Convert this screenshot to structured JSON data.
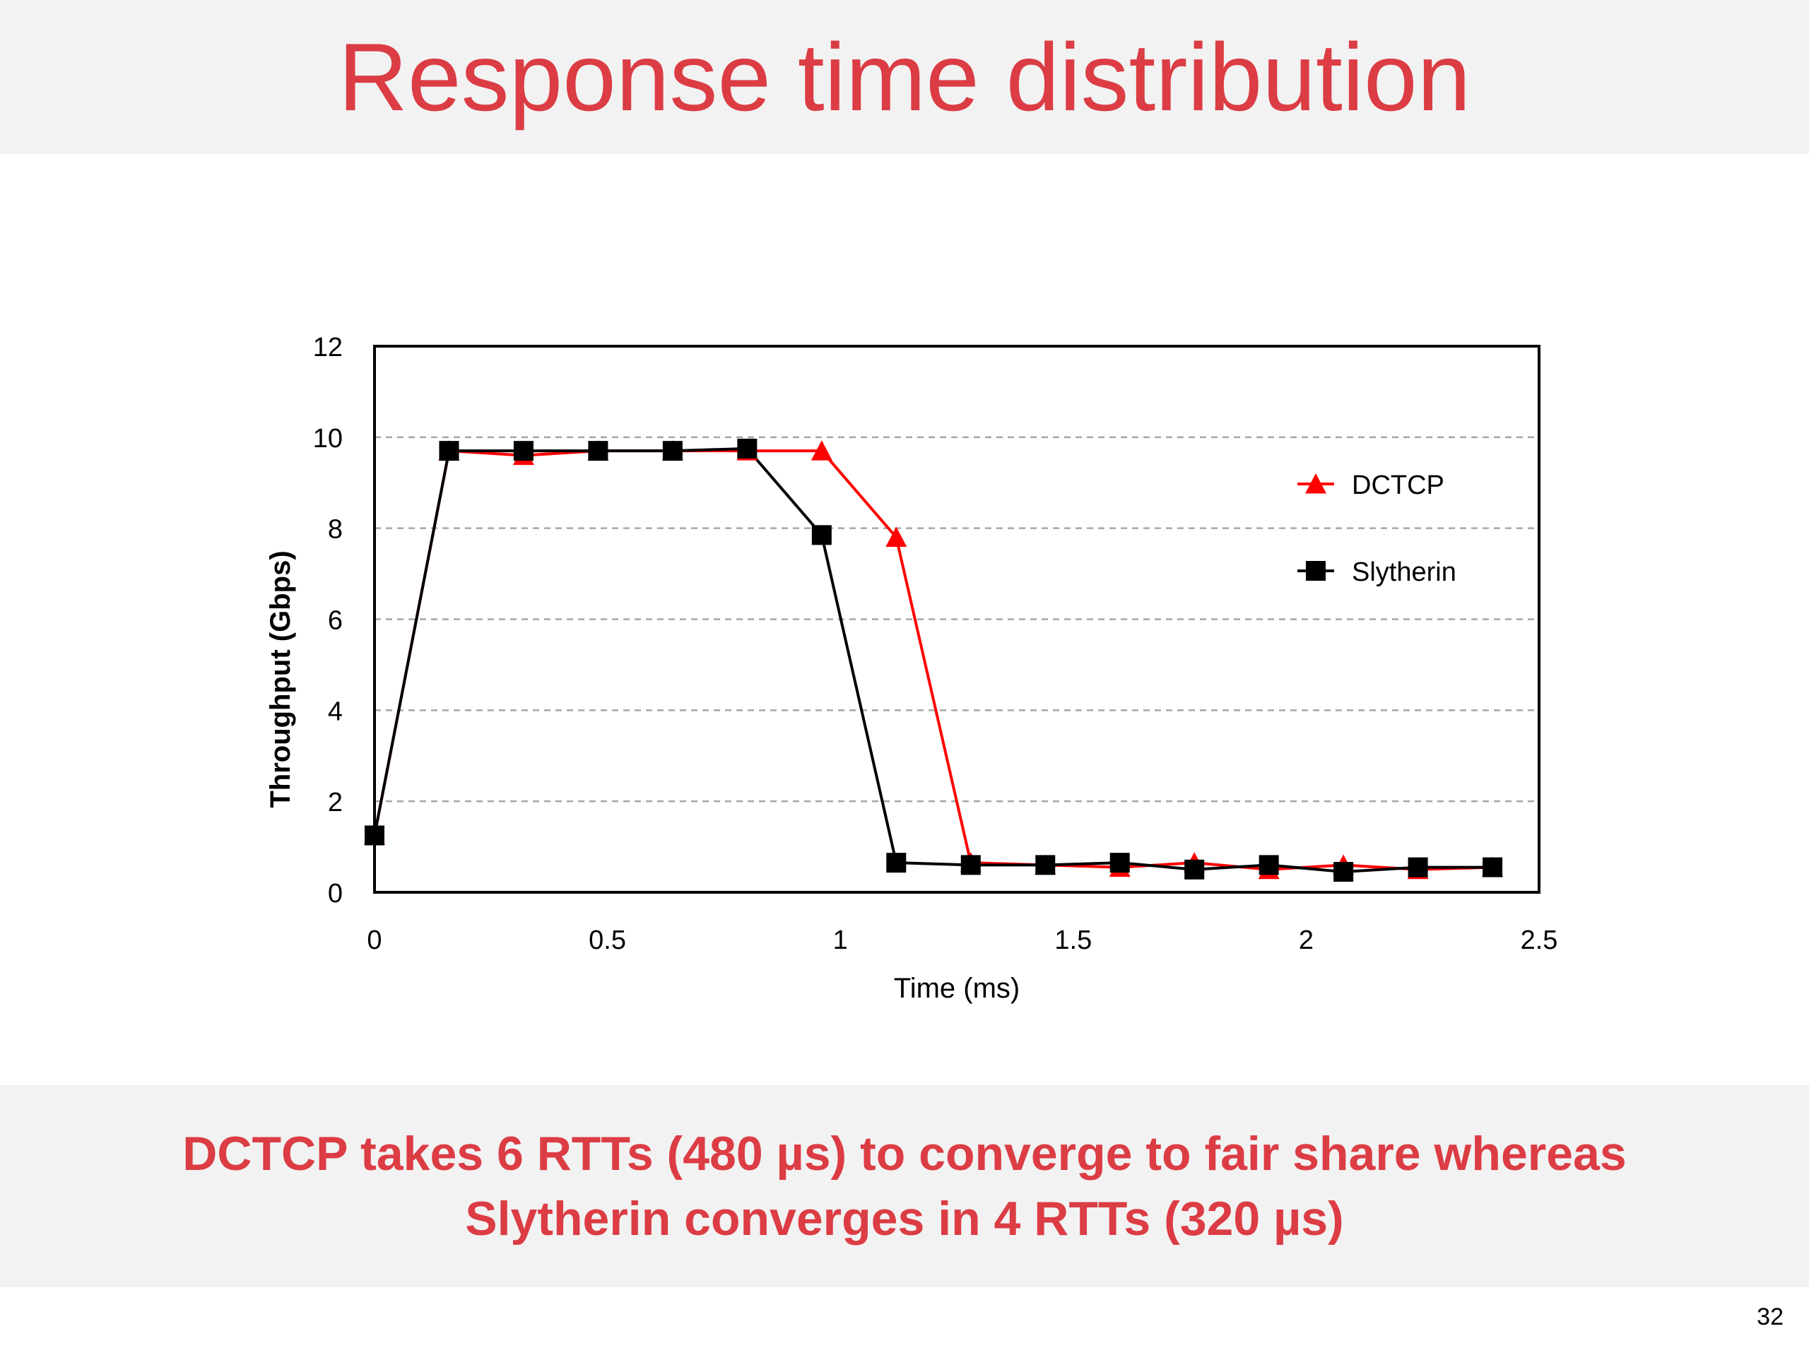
{
  "slide": {
    "title": "Response time distribution",
    "caption_line1": "DCTCP takes 6 RTTs (480 µs) to converge to fair share whereas",
    "caption_line2": "Slytherin converges in 4 RTTs (320 µs)",
    "page_number": "32"
  },
  "colors": {
    "accent": "#dc3c44",
    "band_background": "#f2f2f2",
    "dctcp": "#ff0000",
    "slytherin": "#000000"
  },
  "chart_data": {
    "type": "line",
    "title": "",
    "xlabel": "Time (ms)",
    "ylabel": "Throughput (Gbps)",
    "xlim": [
      0,
      2.5
    ],
    "ylim": [
      0,
      12
    ],
    "xticks": [
      "0",
      "0.5",
      "1",
      "1.5",
      "2",
      "2.5"
    ],
    "yticks": [
      "0",
      "2",
      "4",
      "6",
      "8",
      "10",
      "12"
    ],
    "grid": "horizontal dashed",
    "legend_position": "top-right",
    "series": [
      {
        "name": "DCTCP",
        "color": "#ff0000",
        "marker": "triangle",
        "x": [
          0,
          0.16,
          0.32,
          0.48,
          0.64,
          0.8,
          0.96,
          1.12,
          1.28,
          1.44,
          1.6,
          1.76,
          1.92,
          2.08,
          2.24,
          2.4
        ],
        "y": [
          1.25,
          9.7,
          9.6,
          9.7,
          9.7,
          9.7,
          9.7,
          7.8,
          0.65,
          0.6,
          0.55,
          0.65,
          0.5,
          0.6,
          0.5,
          0.55
        ]
      },
      {
        "name": "Slytherin",
        "color": "#000000",
        "marker": "square",
        "x": [
          0,
          0.16,
          0.32,
          0.48,
          0.64,
          0.8,
          0.96,
          1.12,
          1.28,
          1.44,
          1.6,
          1.76,
          1.92,
          2.08,
          2.24,
          2.4
        ],
        "y": [
          1.25,
          9.7,
          9.7,
          9.7,
          9.7,
          9.75,
          7.85,
          0.65,
          0.6,
          0.6,
          0.65,
          0.5,
          0.6,
          0.45,
          0.55,
          0.55
        ]
      }
    ]
  }
}
